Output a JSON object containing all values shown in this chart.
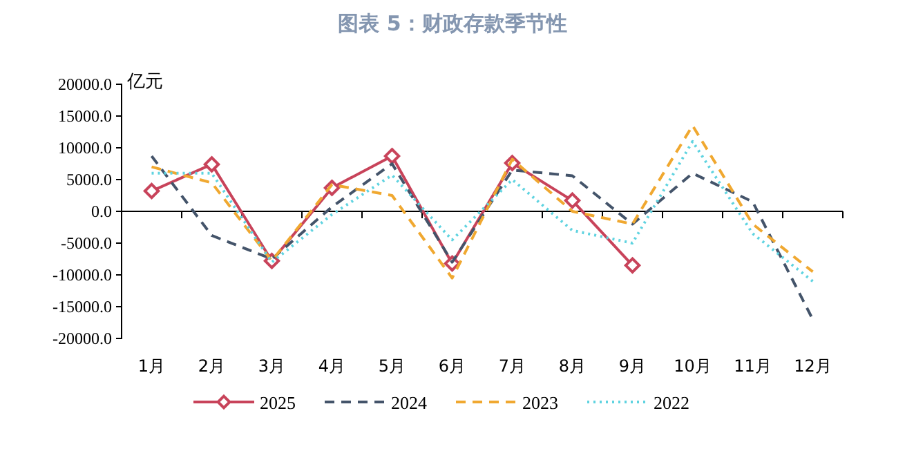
{
  "chart_data": {
    "type": "line",
    "title": "图表 5：财政存款季节性",
    "ylabel": "亿元",
    "categories": [
      "1月",
      "2月",
      "3月",
      "4月",
      "5月",
      "6月",
      "7月",
      "8月",
      "9月",
      "10月",
      "11月",
      "12月"
    ],
    "ylim": [
      -20000,
      20000
    ],
    "yticks": [
      {
        "value": -20000,
        "label": "-20000.0"
      },
      {
        "value": -15000,
        "label": "-15000.0"
      },
      {
        "value": -10000,
        "label": "-10000.0"
      },
      {
        "value": -5000,
        "label": "-5000.0"
      },
      {
        "value": 0,
        "label": "0.0"
      },
      {
        "value": 5000,
        "label": "5000.0"
      },
      {
        "value": 10000,
        "label": "10000.0"
      },
      {
        "value": 15000,
        "label": "15000.0"
      },
      {
        "value": 20000,
        "label": "20000.0"
      }
    ],
    "legend": "bottom",
    "series": [
      {
        "name": "2025",
        "color": "#c8435a",
        "marker": "diamond",
        "line_style": "solid",
        "values": [
          3200,
          7400,
          -7800,
          3700,
          8700,
          -8200,
          7600,
          1700,
          -8500,
          null,
          null,
          null
        ]
      },
      {
        "name": "2024",
        "color": "#44546a",
        "marker": "none",
        "line_style": "dashed",
        "values": [
          8700,
          -3800,
          -7500,
          700,
          7500,
          -8000,
          6500,
          5600,
          -2000,
          6000,
          1500,
          -17000
        ]
      },
      {
        "name": "2023",
        "color": "#f0a830",
        "marker": "none",
        "line_style": "dashed",
        "values": [
          7000,
          4500,
          -7800,
          4200,
          2500,
          -10500,
          8200,
          0,
          -2000,
          13500,
          -2000,
          -9500
        ]
      },
      {
        "name": "2022",
        "color": "#5fd3e0",
        "marker": "none",
        "line_style": "dotted",
        "values": [
          6000,
          6000,
          -8000,
          -500,
          5700,
          -4500,
          5000,
          -3000,
          -5000,
          11000,
          -3500,
          -11000
        ]
      }
    ]
  }
}
